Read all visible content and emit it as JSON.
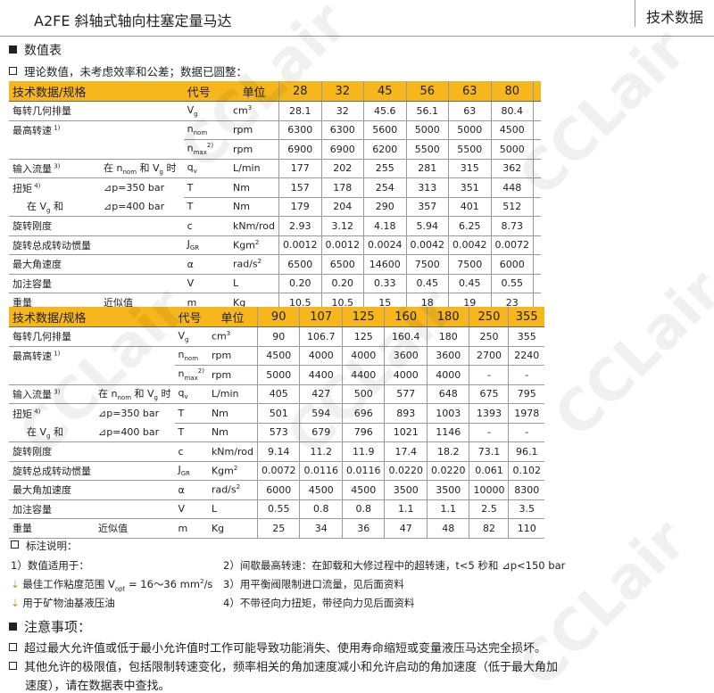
{
  "header": {
    "title": "A2FE 斜轴式轴向柱塞定量马达",
    "right": "技术数据"
  },
  "section1": {
    "title": "数值表",
    "subtitle": "理论数值，未考虑效率和公差；数据已圆整："
  },
  "watermark": "CCLair",
  "tables": [
    {
      "head": {
        "label": "技术数据/规格",
        "code": "代号",
        "unit": "单位",
        "sizes": [
          "28",
          "32",
          "45",
          "56",
          "63",
          "80",
          ""
        ]
      },
      "rows": [
        {
          "label": "每转几何排量",
          "sym": "V",
          "sub": "g",
          "unit": "cm",
          "usup": "3",
          "values": [
            "28.1",
            "32",
            "45.6",
            "56.1",
            "63",
            "80.4",
            ""
          ]
        },
        {
          "label": "最高转速",
          "lsup": "1)",
          "sym": "n",
          "sub": "nom",
          "unit": "rpm",
          "values": [
            "6300",
            "6300",
            "5600",
            "5000",
            "5000",
            "4500",
            ""
          ],
          "nob": true
        },
        {
          "label": "",
          "sym": "n",
          "sub": "max",
          "ssup": "2)",
          "unit": "rpm",
          "values": [
            "6900",
            "6900",
            "6200",
            "5500",
            "5500",
            "5000",
            ""
          ]
        },
        {
          "label": "输入流量",
          "lsup": "3)",
          "cond": "在 n<sub>nom</sub> 和 V<sub>g</sub> 时",
          "sym": "q",
          "sub": "v",
          "unit": "L/min",
          "values": [
            "177",
            "202",
            "255",
            "281",
            "315",
            "362",
            ""
          ]
        },
        {
          "label": "扭矩",
          "lsup": "4)",
          "cond": "⊿p=350 bar",
          "sym": "T",
          "unit": "Nm",
          "values": [
            "157",
            "178",
            "254",
            "313",
            "351",
            "448",
            ""
          ],
          "nob": true
        },
        {
          "label": "在 V<sub>g</sub> 和",
          "cond": "⊿p=400 bar",
          "sym": "T",
          "unit": "Nm",
          "values": [
            "179",
            "204",
            "290",
            "357",
            "401",
            "512",
            ""
          ]
        },
        {
          "label": "旋转刚度",
          "sym": "c",
          "unit": "kNm/rod",
          "values": [
            "2.93",
            "3.12",
            "4.18",
            "5.94",
            "6.25",
            "8.73",
            ""
          ]
        },
        {
          "label": "旋转总成转动惯量",
          "sym": "J",
          "sub": "GR",
          "unit": "Kgm",
          "usup": "2",
          "values": [
            "0.0012",
            "0.0012",
            "0.0024",
            "0.0042",
            "0.0042",
            "0.0072",
            ""
          ]
        },
        {
          "label": "最大角速度",
          "sym": "α",
          "unit": "rad/s",
          "usup": "2",
          "values": [
            "6500",
            "6500",
            "14600",
            "7500",
            "7500",
            "6000",
            ""
          ]
        },
        {
          "label": "加注容量",
          "sym": "V",
          "unit": "L",
          "values": [
            "0.20",
            "0.20",
            "0.33",
            "0.45",
            "0.45",
            "0.55",
            ""
          ]
        },
        {
          "label": "重量",
          "cond": "近似值",
          "sym": "m",
          "unit": "Kg",
          "values": [
            "10.5",
            "10.5",
            "15",
            "18",
            "19",
            "23",
            ""
          ]
        }
      ]
    },
    {
      "head": {
        "label": "技术数据/规格",
        "code": "代号",
        "unit": "单位",
        "sizes": [
          "90",
          "107",
          "125",
          "160",
          "180",
          "250",
          "355"
        ]
      },
      "rows": [
        {
          "label": "每转几何排量",
          "sym": "V",
          "sub": "g",
          "unit": "cm",
          "usup": "3",
          "values": [
            "90",
            "106.7",
            "125",
            "160.4",
            "180",
            "250",
            "355"
          ]
        },
        {
          "label": "最高转速",
          "lsup": "1)",
          "sym": "n",
          "sub": "nom",
          "unit": "rpm",
          "values": [
            "4500",
            "4000",
            "4000",
            "3600",
            "3600",
            "2700",
            "2240"
          ],
          "nob": true
        },
        {
          "label": "",
          "sym": "n",
          "sub": "max",
          "ssup": "2)",
          "unit": "rpm",
          "values": [
            "5000",
            "4400",
            "4400",
            "4000",
            "4000",
            "-",
            "-"
          ]
        },
        {
          "label": "输入流量",
          "lsup": "3)",
          "cond": "在 n<sub>nom</sub> 和 V<sub>g</sub> 时",
          "sym": "q",
          "sub": "v",
          "unit": "L/min",
          "values": [
            "405",
            "427",
            "500",
            "577",
            "648",
            "675",
            "795"
          ]
        },
        {
          "label": "扭矩",
          "lsup": "4)",
          "cond": "⊿p=350 bar",
          "sym": "T",
          "unit": "Nm",
          "values": [
            "501",
            "594",
            "696",
            "893",
            "1003",
            "1393",
            "1978"
          ],
          "nob": true
        },
        {
          "label": "在 V<sub>g</sub> 和",
          "cond": "⊿p=400 bar",
          "sym": "T",
          "unit": "Nm",
          "values": [
            "573",
            "679",
            "796",
            "1021",
            "1146",
            "-",
            "-"
          ]
        },
        {
          "label": "旋转刚度",
          "sym": "c",
          "unit": "kNm/rod",
          "values": [
            "9.14",
            "11.2",
            "11.9",
            "17.4",
            "18.2",
            "73.1",
            "96.1"
          ]
        },
        {
          "label": "旋转总成转动惯量",
          "sym": "J",
          "sub": "GR",
          "unit": "Kgm",
          "usup": "2",
          "values": [
            "0.0072",
            "0.0116",
            "0.0116",
            "0.0220",
            "0.0220",
            "0.061",
            "0.102"
          ]
        },
        {
          "label": "最大角加速度",
          "sym": "α",
          "unit": "rad/s",
          "usup": "2",
          "values": [
            "6000",
            "4500",
            "4500",
            "3500",
            "3500",
            "10000",
            "8300"
          ]
        },
        {
          "label": "加注容量",
          "sym": "V",
          "unit": "L",
          "values": [
            "0.55",
            "0.8",
            "0.8",
            "1.1",
            "1.1",
            "2.5",
            "3.5"
          ]
        },
        {
          "label": "重量",
          "cond": "近似值",
          "sym": "m",
          "unit": "Kg",
          "values": [
            "25",
            "34",
            "36",
            "47",
            "48",
            "82",
            "110"
          ]
        }
      ]
    }
  ],
  "notes": {
    "title": "标注说明：",
    "n1": "1）数值适用于：",
    "n1a": "最佳工作粘度范围 V<sub>opt</sub> = 16～36 mm<sup>2</sup>/s",
    "n1b": "用于矿物油基液压油",
    "n2": "2）间歇最高转速：在卸载和大修过程中的超转速，t<5 秒和 ⊿p<150 bar",
    "n3": "3）用平衡阀限制进口流量，见后面资料",
    "n4": "4）不带径向力扭矩，带径向力见后面资料"
  },
  "caution": {
    "title": "注意事项：",
    "p1": "超过最大允许值或低于最小允许值时工作可能导致功能消失、使用寿命缩短或变量液压马达完全损坏。",
    "p2": "其他允许的极限值，包括限制转速变化，频率相关的角加速度减小和允许启动的角加速度（低于最大角加",
    "p2b": "速度），请在数据表中查找。"
  },
  "colors": {
    "header_bg": "#f6b61c"
  }
}
